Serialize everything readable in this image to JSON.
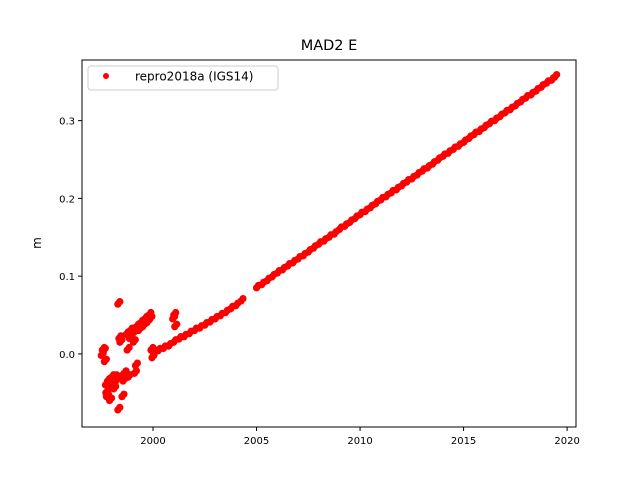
{
  "chart_data": {
    "type": "scatter",
    "title": "MAD2 E",
    "xlabel": "",
    "ylabel": "m",
    "xlim": [
      1996.57,
      2020.43
    ],
    "ylim": [
      -0.094,
      0.378
    ],
    "xticks": [
      2000,
      2005,
      2010,
      2015,
      2020
    ],
    "xtick_labels": [
      "2000",
      "2005",
      "2010",
      "2015",
      "2020"
    ],
    "yticks": [
      0.0,
      0.1,
      0.2,
      0.3
    ],
    "ytick_labels": [
      "0.0",
      "0.1",
      "0.2",
      "0.3"
    ],
    "grid": false,
    "legend": {
      "position": "top-left",
      "entries": [
        "repro2018a (IGS14)"
      ]
    },
    "series": [
      {
        "name": "repro2018a (IGS14)",
        "color": "#ff0000",
        "marker": "dot",
        "points": [
          [
            1997.5,
            -0.002
          ],
          [
            1997.55,
            0.005
          ],
          [
            1997.6,
            0.004
          ],
          [
            1997.65,
            -0.01
          ],
          [
            1997.7,
            -0.04
          ],
          [
            1997.72,
            -0.05
          ],
          [
            1997.75,
            -0.055
          ],
          [
            1997.8,
            -0.035
          ],
          [
            1997.85,
            -0.045
          ],
          [
            1997.9,
            -0.06
          ],
          [
            1997.95,
            -0.04
          ],
          [
            1998.0,
            -0.03
          ],
          [
            1998.05,
            -0.04
          ],
          [
            1998.1,
            -0.045
          ],
          [
            1998.15,
            -0.03
          ],
          [
            1998.2,
            -0.035
          ],
          [
            1998.3,
            0.064
          ],
          [
            1998.3,
            -0.072
          ],
          [
            1998.35,
            0.02
          ],
          [
            1998.4,
            0.015
          ],
          [
            1998.45,
            -0.03
          ],
          [
            1998.5,
            -0.055
          ],
          [
            1998.55,
            -0.035
          ],
          [
            1998.6,
            -0.025
          ],
          [
            1998.65,
            -0.03
          ],
          [
            1998.7,
            0.025
          ],
          [
            1998.75,
            0.005
          ],
          [
            1998.8,
            -0.03
          ],
          [
            1998.85,
            0.02
          ],
          [
            1998.9,
            0.03
          ],
          [
            1999.0,
            0.025
          ],
          [
            1999.05,
            0.015
          ],
          [
            1999.1,
            -0.025
          ],
          [
            1999.15,
            -0.015
          ],
          [
            1999.2,
            0.035
          ],
          [
            1999.3,
            0.03
          ],
          [
            1999.4,
            0.04
          ],
          [
            1999.5,
            0.035
          ],
          [
            1999.6,
            0.045
          ],
          [
            1999.7,
            0.04
          ],
          [
            1999.8,
            0.05
          ],
          [
            1999.85,
            0.045
          ],
          [
            1999.9,
            0.005
          ],
          [
            1999.95,
            -0.005
          ],
          [
            2000.0,
            0.002
          ],
          [
            2000.25,
            0.004
          ],
          [
            2000.5,
            0.007
          ],
          [
            2000.75,
            0.01
          ],
          [
            2000.95,
            0.045
          ],
          [
            2001.0,
            0.05
          ],
          [
            2001.05,
            0.035
          ],
          [
            2001.0,
            0.015
          ],
          [
            2001.25,
            0.019
          ],
          [
            2001.5,
            0.022
          ],
          [
            2001.75,
            0.026
          ],
          [
            2002.0,
            0.03
          ],
          [
            2002.25,
            0.033
          ],
          [
            2002.5,
            0.037
          ],
          [
            2002.75,
            0.041
          ],
          [
            2003.0,
            0.045
          ],
          [
            2003.25,
            0.049
          ],
          [
            2003.5,
            0.053
          ],
          [
            2003.75,
            0.058
          ],
          [
            2004.0,
            0.062
          ],
          [
            2004.25,
            0.068
          ],
          [
            2005.0,
            0.085
          ],
          [
            2005.25,
            0.089
          ],
          [
            2005.5,
            0.094
          ],
          [
            2005.75,
            0.099
          ],
          [
            2006.0,
            0.104
          ],
          [
            2006.25,
            0.108
          ],
          [
            2006.5,
            0.113
          ],
          [
            2006.75,
            0.117
          ],
          [
            2007.0,
            0.122
          ],
          [
            2007.25,
            0.126
          ],
          [
            2007.5,
            0.131
          ],
          [
            2007.75,
            0.136
          ],
          [
            2008.0,
            0.141
          ],
          [
            2008.25,
            0.145
          ],
          [
            2008.5,
            0.15
          ],
          [
            2008.75,
            0.154
          ],
          [
            2009.0,
            0.16
          ],
          [
            2009.25,
            0.164
          ],
          [
            2009.5,
            0.169
          ],
          [
            2009.75,
            0.174
          ],
          [
            2010.0,
            0.179
          ],
          [
            2010.25,
            0.183
          ],
          [
            2010.5,
            0.188
          ],
          [
            2010.75,
            0.193
          ],
          [
            2011.0,
            0.198
          ],
          [
            2011.25,
            0.202
          ],
          [
            2011.5,
            0.207
          ],
          [
            2011.75,
            0.211
          ],
          [
            2012.0,
            0.216
          ],
          [
            2012.25,
            0.221
          ],
          [
            2012.5,
            0.225
          ],
          [
            2012.75,
            0.23
          ],
          [
            2013.0,
            0.235
          ],
          [
            2013.25,
            0.239
          ],
          [
            2013.5,
            0.244
          ],
          [
            2013.75,
            0.249
          ],
          [
            2014.0,
            0.254
          ],
          [
            2014.25,
            0.258
          ],
          [
            2014.5,
            0.263
          ],
          [
            2014.75,
            0.267
          ],
          [
            2015.0,
            0.272
          ],
          [
            2015.25,
            0.277
          ],
          [
            2015.5,
            0.282
          ],
          [
            2015.75,
            0.286
          ],
          [
            2016.0,
            0.291
          ],
          [
            2016.25,
            0.296
          ],
          [
            2016.5,
            0.3
          ],
          [
            2016.75,
            0.305
          ],
          [
            2017.0,
            0.31
          ],
          [
            2017.25,
            0.314
          ],
          [
            2017.5,
            0.319
          ],
          [
            2017.75,
            0.324
          ],
          [
            2018.0,
            0.329
          ],
          [
            2018.25,
            0.333
          ],
          [
            2018.5,
            0.338
          ],
          [
            2018.75,
            0.343
          ],
          [
            2019.0,
            0.348
          ],
          [
            2019.25,
            0.352
          ],
          [
            2019.4,
            0.356
          ]
        ]
      }
    ]
  }
}
